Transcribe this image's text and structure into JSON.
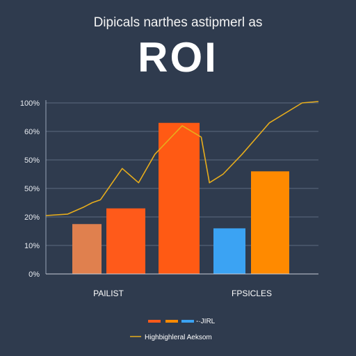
{
  "header": {
    "subtitle": "Dipicals narthes astipmerl as",
    "title": "ROI"
  },
  "chart_data": {
    "type": "bar",
    "title": "ROI",
    "subtitle": "Dipicals narthes astipmerl as",
    "y_tick_labels": [
      "0%",
      "10%",
      "20%",
      "50%",
      "50%",
      "60%",
      "100%"
    ],
    "ylim": [
      0,
      6
    ],
    "grid": true,
    "categories": [
      "PAILIST",
      "FPSICLES"
    ],
    "bars": [
      {
        "value": 1.75,
        "color": "#e0804e"
      },
      {
        "value": 2.3,
        "color": "#ff5a1a"
      },
      {
        "value": 5.3,
        "color": "#ff5a14"
      },
      {
        "value": 1.6,
        "color": "#3ba3f3"
      },
      {
        "value": 3.6,
        "color": "#ff8a00"
      }
    ],
    "line": {
      "color": "#e7ad1c",
      "x_fraction": [
        0,
        0.08,
        0.14,
        0.17,
        0.2,
        0.28,
        0.34,
        0.4,
        0.5,
        0.57,
        0.6,
        0.65,
        0.72,
        0.82,
        0.94,
        1.0
      ],
      "values": [
        2.05,
        2.1,
        2.35,
        2.5,
        2.6,
        3.7,
        3.2,
        4.2,
        5.2,
        4.8,
        3.2,
        3.5,
        4.2,
        5.3,
        6.0,
        6.05
      ]
    },
    "legend": [
      {
        "label": "-·JIRL",
        "swatches": [
          "#ff5a1a",
          "#ff8a00",
          "#3ba3f3"
        ]
      },
      {
        "label": "Highbighleral Aeksom",
        "color": "#e7ad1c"
      }
    ]
  }
}
